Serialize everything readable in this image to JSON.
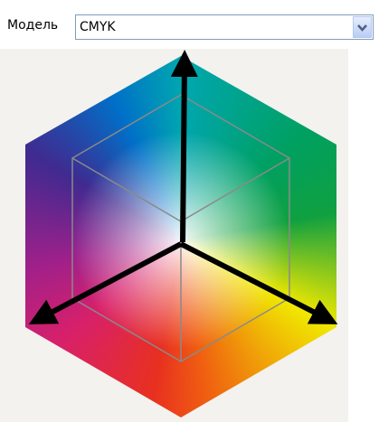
{
  "form": {
    "label": "Модель",
    "select_value": "CMYK"
  }
}
